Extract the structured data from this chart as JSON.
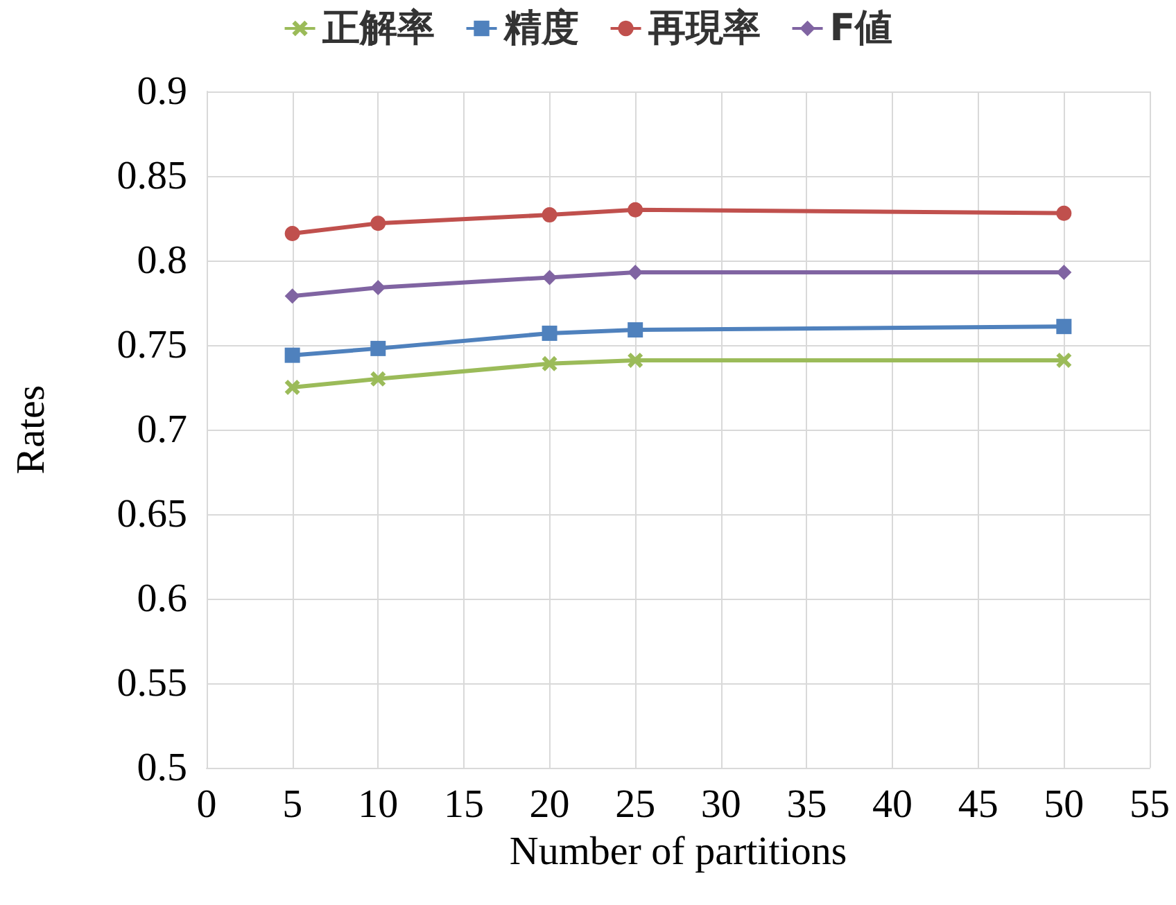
{
  "chart_data": {
    "type": "line",
    "xlabel": "Number of partitions",
    "ylabel": "Rates",
    "x": [
      5,
      10,
      20,
      25,
      50
    ],
    "series": [
      {
        "name": "正解率",
        "color": "#9bbb59",
        "marker": "cross",
        "values": [
          0.725,
          0.73,
          0.739,
          0.741,
          0.741
        ]
      },
      {
        "name": "精度",
        "color": "#4f81bd",
        "marker": "square",
        "values": [
          0.744,
          0.748,
          0.757,
          0.759,
          0.761
        ]
      },
      {
        "name": "再現率",
        "color": "#c0504d",
        "marker": "circle",
        "values": [
          0.816,
          0.822,
          0.827,
          0.83,
          0.828
        ]
      },
      {
        "name": "F値",
        "color": "#8064a2",
        "marker": "diamond",
        "values": [
          0.779,
          0.784,
          0.79,
          0.793,
          0.793
        ]
      }
    ],
    "xlim": [
      0,
      55
    ],
    "xticks": [
      0,
      5,
      10,
      15,
      20,
      25,
      30,
      35,
      40,
      45,
      50,
      55
    ],
    "ylim": [
      0.5,
      0.9
    ],
    "yticks": [
      0.5,
      0.55,
      0.6,
      0.65,
      0.7,
      0.75,
      0.8,
      0.85,
      0.9
    ],
    "grid": true,
    "legend": "top",
    "line_style": "solid"
  }
}
